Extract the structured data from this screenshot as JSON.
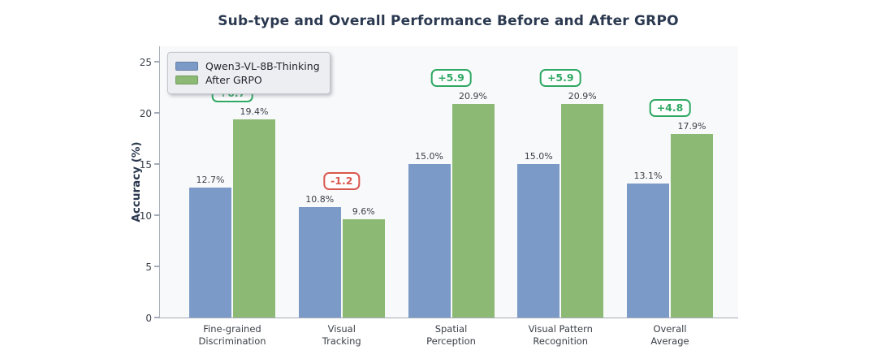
{
  "chart_data": {
    "type": "bar",
    "title": "Sub-type and Overall Performance Before and After GRPO",
    "xlabel": "",
    "ylabel": "Accuracy (%)",
    "categories": [
      [
        "Fine-grained",
        "Discrimination"
      ],
      [
        "Visual",
        "Tracking"
      ],
      [
        "Spatial",
        "Perception"
      ],
      [
        "Visual Pattern",
        "Recognition"
      ],
      [
        "Overall",
        "Average"
      ]
    ],
    "series": [
      {
        "name": "Qwen3-VL-8B-Thinking",
        "color": "#7b9ac8",
        "values": [
          12.7,
          10.8,
          15.0,
          15.0,
          13.1
        ],
        "labels": [
          "12.7%",
          "10.8%",
          "15.0%",
          "15.0%",
          "13.1%"
        ]
      },
      {
        "name": "After GRPO",
        "color": "#8cba74",
        "values": [
          19.4,
          9.6,
          20.9,
          20.9,
          17.9
        ],
        "labels": [
          "19.4%",
          "9.6%",
          "20.9%",
          "20.9%",
          "17.9%"
        ]
      }
    ],
    "deltas": [
      {
        "label": "+6.7",
        "positive": true
      },
      {
        "label": "-1.2",
        "positive": false
      },
      {
        "label": "+5.9",
        "positive": true
      },
      {
        "label": "+5.9",
        "positive": true
      },
      {
        "label": "+4.8",
        "positive": true
      }
    ],
    "yticks": [
      "0",
      "5",
      "10",
      "15",
      "20",
      "25"
    ],
    "ytick_values": [
      0,
      5,
      10,
      15,
      20,
      25
    ],
    "ylim": [
      0,
      26.5
    ],
    "grid": false,
    "legend_position": "upper left",
    "colors": {
      "positive_delta": "#2fa863",
      "negative_delta": "#d9584e",
      "plot_background": "#f8f9fb",
      "title_text": "#2b3950"
    }
  }
}
